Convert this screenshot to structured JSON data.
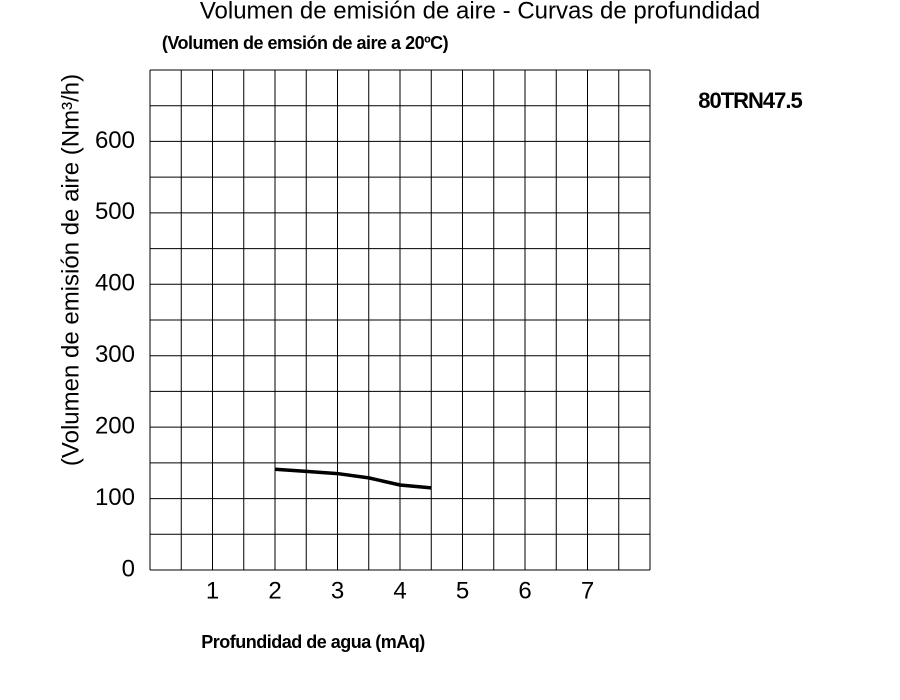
{
  "chart_data": {
    "type": "line",
    "title": "Volumen de emisión de aire - Curvas de profundidad",
    "subtitle": "(Volumen de emsión de aire a 20ºC)",
    "annotation": "80TRN47.5",
    "x_label": "Profundidad de agua (mAq)",
    "y_label": "(Volumen de emisión de aire (Nm³/h)",
    "series": [
      {
        "name": "80TRN47.5",
        "color": "#000000",
        "x": [
          2,
          2.5,
          3,
          3.5,
          4,
          4.5
        ],
        "values": [
          141,
          138,
          135,
          129,
          119,
          115
        ]
      }
    ],
    "xlim": [
      0,
      8
    ],
    "ylim": [
      0,
      700
    ],
    "xticks": [
      1,
      2,
      3,
      4,
      5,
      6,
      7
    ],
    "yticks": [
      0,
      100,
      200,
      300,
      400,
      500,
      600
    ],
    "xgrid": [
      0,
      0.5,
      1,
      1.5,
      2,
      2.5,
      3,
      3.5,
      4,
      4.5,
      5,
      5.5,
      6,
      6.5,
      7,
      7.5,
      8
    ],
    "ygrid": [
      0,
      50,
      100,
      150,
      200,
      250,
      300,
      350,
      400,
      450,
      500,
      550,
      600,
      650,
      700
    ],
    "grid": true
  }
}
